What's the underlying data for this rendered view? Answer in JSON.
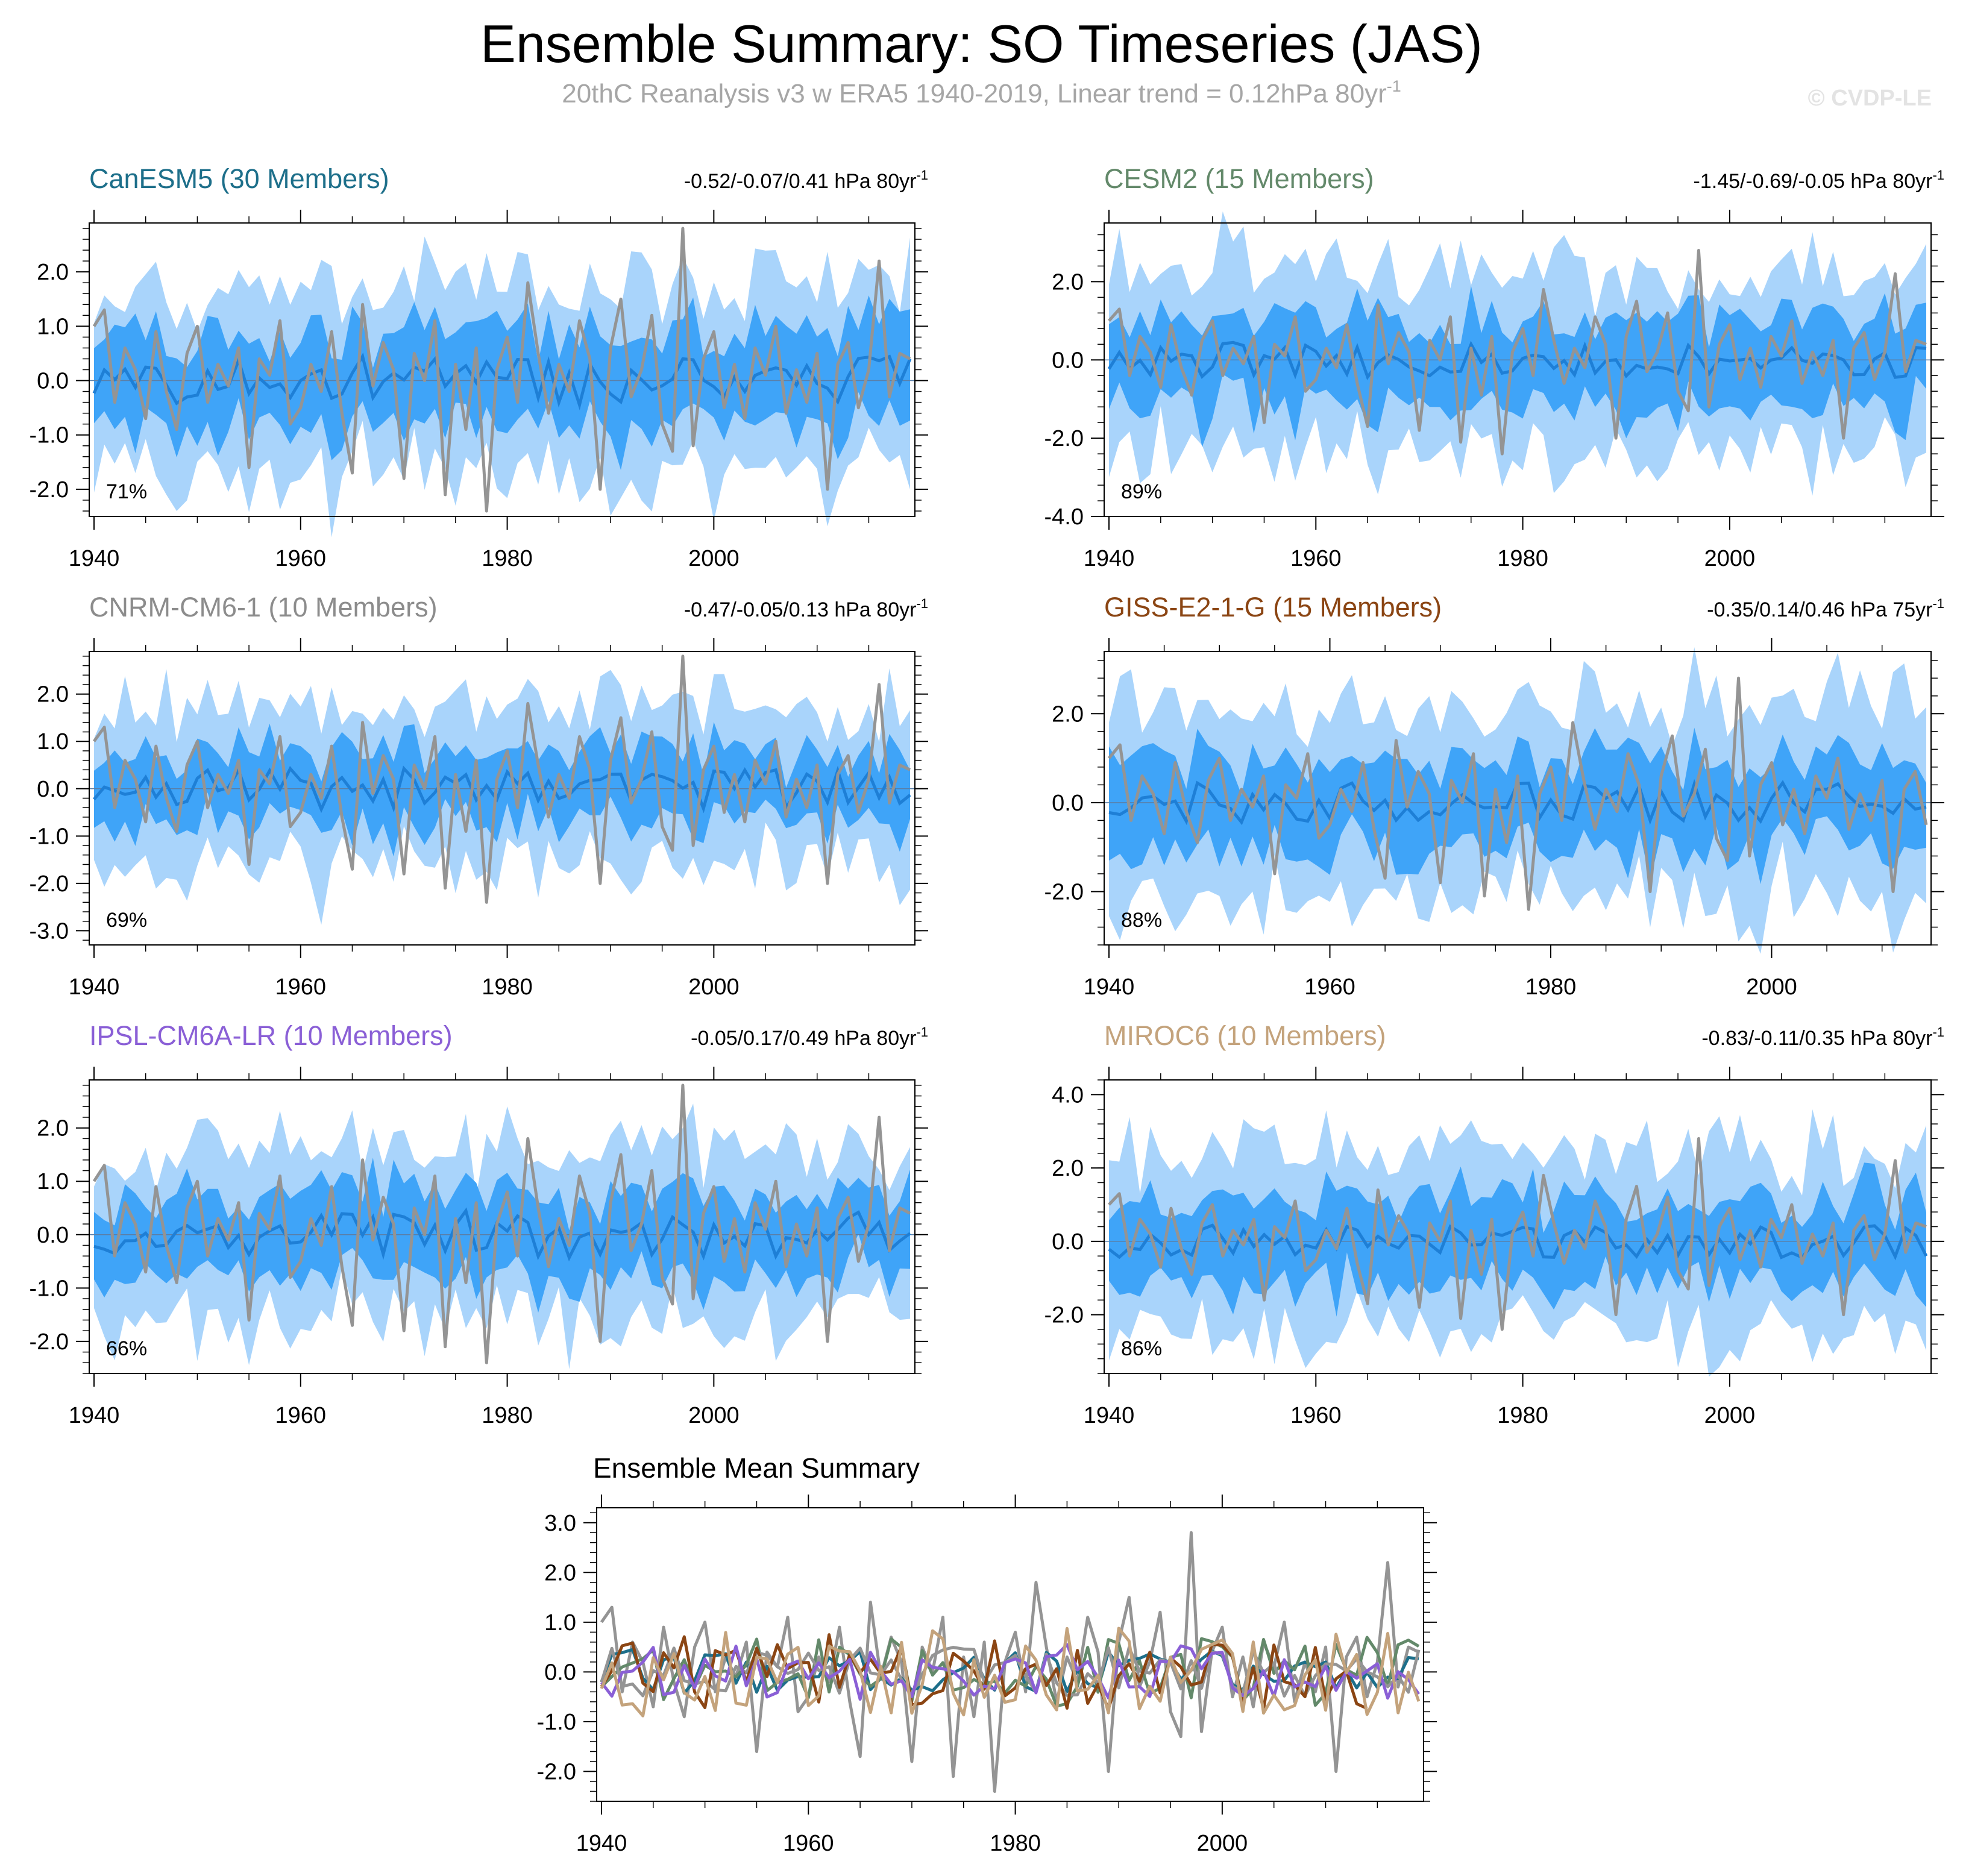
{
  "header": {
    "title": "Ensemble Summary: SO Timeseries (JAS)",
    "subtitle": "20thC Reanalysis v3 w ERA5 1940-2019, Linear trend = 0.12hPa 80yr",
    "subtitle_sup": "-1",
    "copyright": "© CVDP-LE"
  },
  "chart_data": [
    {
      "type": "line",
      "name": "CanESM5",
      "title": "CanESM5 (30 Members)",
      "title_color": "#1d6f8a",
      "trend": "-0.52/-0.07/0.41 hPa 80yr",
      "trend_sup": "-1",
      "percent": "71%",
      "x_range": [
        1940,
        2019
      ],
      "ylim": [
        -2.5,
        2.9
      ],
      "yticks": [
        "2.0",
        "1.0",
        "0.0",
        "-1.0",
        "-2.0"
      ],
      "ytick_values": [
        2,
        1,
        0,
        -1,
        -2
      ],
      "xticks": [
        "1940",
        "1960",
        "1980",
        "2000"
      ],
      "xtick_values": [
        1940,
        1960,
        1980,
        2000
      ],
      "ens_spread": 1.0,
      "outer_spread": 1.9,
      "seed": 11
    },
    {
      "type": "line",
      "name": "CESM2",
      "title": "CESM2 (15 Members)",
      "title_color": "#63896a",
      "trend": "-1.45/-0.69/-0.05 hPa 80yr",
      "trend_sup": "-1",
      "percent": "89%",
      "x_range": [
        1940,
        2019
      ],
      "ylim": [
        -4.0,
        3.5
      ],
      "yticks": [
        "2.0",
        "0.0",
        "-2.0",
        "-4.0"
      ],
      "ytick_values": [
        2,
        0,
        -2,
        -4
      ],
      "xticks": [
        "1940",
        "1960",
        "1980",
        "2000"
      ],
      "xtick_values": [
        1940,
        1960,
        1980,
        2000
      ],
      "ens_spread": 1.3,
      "outer_spread": 2.6,
      "seed": 23
    },
    {
      "type": "line",
      "name": "CNRM-CM6-1",
      "title": "CNRM-CM6-1 (10 Members)",
      "title_color": "#8c8c8c",
      "trend": "-0.47/-0.05/0.13 hPa 80yr",
      "trend_sup": "-1",
      "percent": "69%",
      "x_range": [
        1940,
        2019
      ],
      "ylim": [
        -3.3,
        2.9
      ],
      "yticks": [
        "2.0",
        "1.0",
        "0.0",
        "-1.0",
        "-2.0",
        "-3.0"
      ],
      "ytick_values": [
        2,
        1,
        0,
        -1,
        -2,
        -3
      ],
      "xticks": [
        "1940",
        "1960",
        "1980",
        "2000"
      ],
      "xtick_values": [
        1940,
        1960,
        1980,
        2000
      ],
      "ens_spread": 0.9,
      "outer_spread": 1.9,
      "seed": 37
    },
    {
      "type": "line",
      "name": "GISS-E2-1-G",
      "title": "GISS-E2-1-G (15 Members)",
      "title_color": "#8b4513",
      "trend": "-0.35/0.14/0.46 hPa 75yr",
      "trend_sup": "-1",
      "percent": "88%",
      "x_range": [
        1940,
        2014
      ],
      "ylim": [
        -3.2,
        3.4
      ],
      "yticks": [
        "2.0",
        "0.0",
        "-2.0"
      ],
      "ytick_values": [
        2,
        0,
        -2
      ],
      "xticks": [
        "1940",
        "1960",
        "1980",
        "2000"
      ],
      "xtick_values": [
        1940,
        1960,
        1980,
        2000
      ],
      "ens_spread": 1.2,
      "outer_spread": 2.4,
      "seed": 41
    },
    {
      "type": "line",
      "name": "IPSL-CM6A-LR",
      "title": "IPSL-CM6A-LR (10 Members)",
      "title_color": "#8a5fd6",
      "trend": "-0.05/0.17/0.49 hPa 80yr",
      "trend_sup": "-1",
      "percent": "66%",
      "x_range": [
        1940,
        2019
      ],
      "ylim": [
        -2.6,
        2.9
      ],
      "yticks": [
        "2.0",
        "1.0",
        "0.0",
        "-1.0",
        "-2.0"
      ],
      "ytick_values": [
        2,
        1,
        0,
        -1,
        -2
      ],
      "xticks": [
        "1940",
        "1960",
        "1980",
        "2000"
      ],
      "xtick_values": [
        1940,
        1960,
        1980,
        2000
      ],
      "ens_spread": 0.9,
      "outer_spread": 1.8,
      "seed": 53
    },
    {
      "type": "line",
      "name": "MIROC6",
      "title": "MIROC6 (10 Members)",
      "title_color": "#c4a37c",
      "trend": "-0.83/-0.11/0.35 hPa 80yr",
      "trend_sup": "-1",
      "percent": "86%",
      "x_range": [
        1940,
        2019
      ],
      "ylim": [
        -3.6,
        4.4
      ],
      "yticks": [
        "4.0",
        "2.0",
        "0.0",
        "-2.0"
      ],
      "ytick_values": [
        4,
        2,
        0,
        -2
      ],
      "xticks": [
        "1940",
        "1960",
        "1980",
        "2000"
      ],
      "xtick_values": [
        1940,
        1960,
        1980,
        2000
      ],
      "ens_spread": 1.4,
      "outer_spread": 2.8,
      "seed": 67
    },
    {
      "type": "line",
      "name": "Ensemble Mean Summary",
      "title": "Ensemble Mean Summary",
      "x_range": [
        1940,
        2019
      ],
      "ylim": [
        -2.6,
        3.3
      ],
      "yticks": [
        "3.0",
        "2.0",
        "1.0",
        "0.0",
        "-1.0",
        "-2.0"
      ],
      "ytick_values": [
        3,
        2,
        1,
        0,
        -1,
        -2
      ],
      "xticks": [
        "1940",
        "1960",
        "1980",
        "2000"
      ],
      "xtick_values": [
        1940,
        1960,
        1980,
        2000
      ],
      "series": [
        {
          "name": "20thC Reanalysis v3 w ERA5",
          "color": "#949494"
        },
        {
          "name": "CanESM5",
          "color": "#1d6f8a"
        },
        {
          "name": "CESM2",
          "color": "#63896a"
        },
        {
          "name": "CNRM-CM6-1",
          "color": "#949494"
        },
        {
          "name": "GISS-E2-1-G",
          "color": "#8b4513"
        },
        {
          "name": "IPSL-CM6A-LR",
          "color": "#8a5fd6"
        },
        {
          "name": "MIROC6",
          "color": "#c4a37c"
        }
      ]
    }
  ],
  "observed": {
    "name": "20thC Reanalysis v3 w ERA5",
    "color": "#949494",
    "start_year": 1940,
    "values": [
      1.0,
      1.3,
      -0.4,
      0.6,
      0.2,
      -0.7,
      0.9,
      -0.2,
      -0.9,
      0.5,
      1.0,
      -0.4,
      0.3,
      -0.1,
      0.6,
      -1.6,
      0.4,
      0.1,
      1.1,
      -0.8,
      -0.5,
      0.3,
      -0.2,
      0.9,
      -0.6,
      -1.7,
      1.4,
      -0.1,
      0.7,
      0.2,
      -1.8,
      0.5,
      0.0,
      1.1,
      -2.1,
      0.3,
      -0.9,
      0.6,
      -2.4,
      0.2,
      0.8,
      -0.4,
      1.8,
      0.5,
      -0.6,
      0.3,
      -0.2,
      1.1,
      0.4,
      -2.0,
      0.6,
      1.5,
      -0.3,
      0.2,
      1.2,
      -0.8,
      -1.3,
      2.8,
      -1.2,
      0.4,
      0.9,
      -0.5,
      0.3,
      -0.7,
      0.6,
      0.1,
      1.0,
      -0.6,
      0.2,
      -0.4,
      0.5,
      -2.0,
      0.3,
      0.7,
      -0.5,
      0.2,
      2.2,
      -0.3,
      0.5,
      0.4
    ]
  }
}
